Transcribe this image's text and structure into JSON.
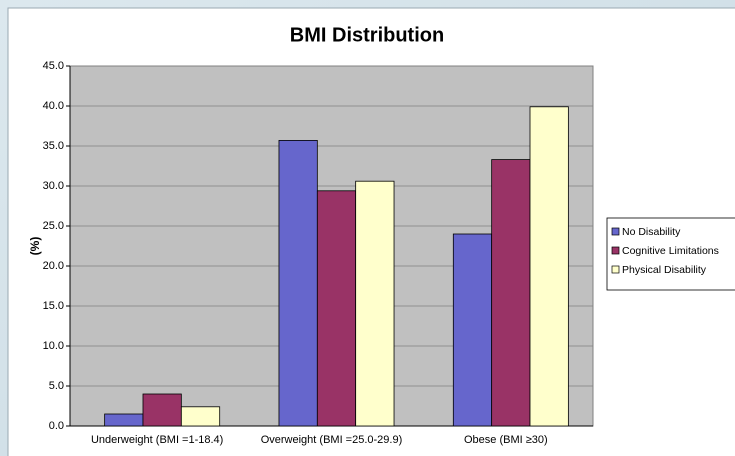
{
  "chart_data": {
    "type": "bar",
    "title": "BMI Distribution",
    "y_label": "(%)",
    "categories": [
      "Underweight (BMI =1-18.4)",
      "Overweight (BMI =25.0-29.9)",
      "Obese (BMI ≥30)"
    ],
    "series": [
      {
        "name": "No Disability",
        "color": "#6666cc",
        "values": [
          1.5,
          35.7,
          24.0
        ]
      },
      {
        "name": "Cognitive Limitations",
        "color": "#993366",
        "values": [
          4.0,
          29.4,
          33.3
        ]
      },
      {
        "name": "Physical Disability",
        "color": "#ffffcc",
        "values": [
          2.4,
          30.6,
          39.9
        ]
      }
    ],
    "ylim": [
      0,
      45
    ],
    "yticks": [
      {
        "value": 0,
        "label": "0.0"
      },
      {
        "value": 5,
        "label": "5.0"
      },
      {
        "value": 10,
        "label": "10.0"
      },
      {
        "value": 15,
        "label": "15.0"
      },
      {
        "value": 20,
        "label": "20.0"
      },
      {
        "value": 25,
        "label": "25.0"
      },
      {
        "value": 30,
        "label": "30.0"
      },
      {
        "value": 35,
        "label": "35.0"
      },
      {
        "value": 40,
        "label": "40.0"
      },
      {
        "value": 45,
        "label": "45.0"
      }
    ],
    "grid": true,
    "legend": "right"
  }
}
